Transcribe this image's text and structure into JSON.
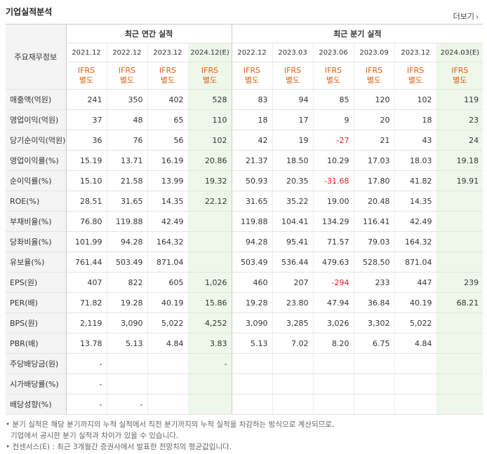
{
  "title": "기업실적분석",
  "more_label": "더보기",
  "header": {
    "label": "주요재무정보",
    "annual": "최근 연간 실적",
    "quarterly": "최근 분기 실적",
    "annual_periods": [
      "2021.12",
      "2022.12",
      "2023.12",
      "2024.12(E)"
    ],
    "quarter_periods": [
      "2022.12",
      "2023.03",
      "2023.06",
      "2023.09",
      "2023.12",
      "2024.03(E)"
    ],
    "basis_line1": "IFRS",
    "basis_line2": "별도"
  },
  "rows": [
    {
      "label": "매출액(억원)",
      "values": [
        "241",
        "350",
        "402",
        "528",
        "83",
        "94",
        "85",
        "120",
        "102",
        "119"
      ]
    },
    {
      "label": "영업이익(억원)",
      "values": [
        "37",
        "48",
        "65",
        "110",
        "18",
        "17",
        "9",
        "20",
        "18",
        "23"
      ]
    },
    {
      "label": "당기순이익(억원)",
      "values": [
        "36",
        "76",
        "56",
        "102",
        "42",
        "19",
        "-27",
        "21",
        "43",
        "24"
      ]
    },
    {
      "label": "영업이익률(%)",
      "values": [
        "15.19",
        "13.71",
        "16.19",
        "20.86",
        "21.37",
        "18.50",
        "10.29",
        "17.03",
        "18.03",
        "19.18"
      ]
    },
    {
      "label": "순이익률(%)",
      "values": [
        "15.10",
        "21.58",
        "13.99",
        "19.32",
        "50.93",
        "20.35",
        "-31.68",
        "17.80",
        "41.82",
        "19.91"
      ]
    },
    {
      "label": "ROE(%)",
      "values": [
        "28.51",
        "31.65",
        "14.35",
        "22.12",
        "31.65",
        "35.22",
        "19.00",
        "20.48",
        "14.35",
        ""
      ]
    },
    {
      "label": "부채비율(%)",
      "values": [
        "76.80",
        "119.88",
        "42.49",
        "",
        "119.88",
        "104.41",
        "134.29",
        "116.41",
        "42.49",
        ""
      ]
    },
    {
      "label": "당좌비율(%)",
      "values": [
        "101.99",
        "94.28",
        "164.32",
        "",
        "94.28",
        "95.41",
        "71.57",
        "79.03",
        "164.32",
        ""
      ]
    },
    {
      "label": "유보율(%)",
      "values": [
        "761.44",
        "503.49",
        "871.04",
        "",
        "503.49",
        "536.44",
        "479.63",
        "528.50",
        "871.04",
        ""
      ]
    },
    {
      "label": "EPS(원)",
      "values": [
        "407",
        "822",
        "605",
        "1,026",
        "460",
        "207",
        "-294",
        "233",
        "447",
        "239"
      ]
    },
    {
      "label": "PER(배)",
      "values": [
        "71.82",
        "19.28",
        "40.19",
        "15.86",
        "19.28",
        "23.80",
        "47.94",
        "36.84",
        "40.19",
        "68.21"
      ]
    },
    {
      "label": "BPS(원)",
      "values": [
        "2,119",
        "3,090",
        "5,022",
        "4,252",
        "3,090",
        "3,285",
        "3,026",
        "3,302",
        "5,022",
        ""
      ]
    },
    {
      "label": "PBR(배)",
      "values": [
        "13.78",
        "5.13",
        "4.84",
        "3.83",
        "5.13",
        "7.02",
        "8.20",
        "6.75",
        "4.84",
        ""
      ]
    },
    {
      "label": "주당배당금(원)",
      "values": [
        "-",
        "",
        "",
        "-",
        "",
        "",
        "",
        "",
        "",
        ""
      ]
    },
    {
      "label": "시가배당률(%)",
      "values": [
        "-",
        "",
        "",
        "",
        "",
        "",
        "",
        "",
        "",
        ""
      ]
    },
    {
      "label": "배당성향(%)",
      "values": [
        "-",
        "-",
        "",
        "",
        "",
        "",
        "",
        "",
        "",
        ""
      ]
    }
  ],
  "notes": [
    "분기 실적은 해당 분기까지의 누적 실적에서 직전 분기까지의 누적 실적을 차감하는 방식으로 계산되므로,",
    "기업에서 공시한 분기 실적과 차이가 있을 수 있습니다.",
    "컨센서스(E) : 최근 3개월간 증권사에서 발표한 전망치의 평균값입니다."
  ]
}
